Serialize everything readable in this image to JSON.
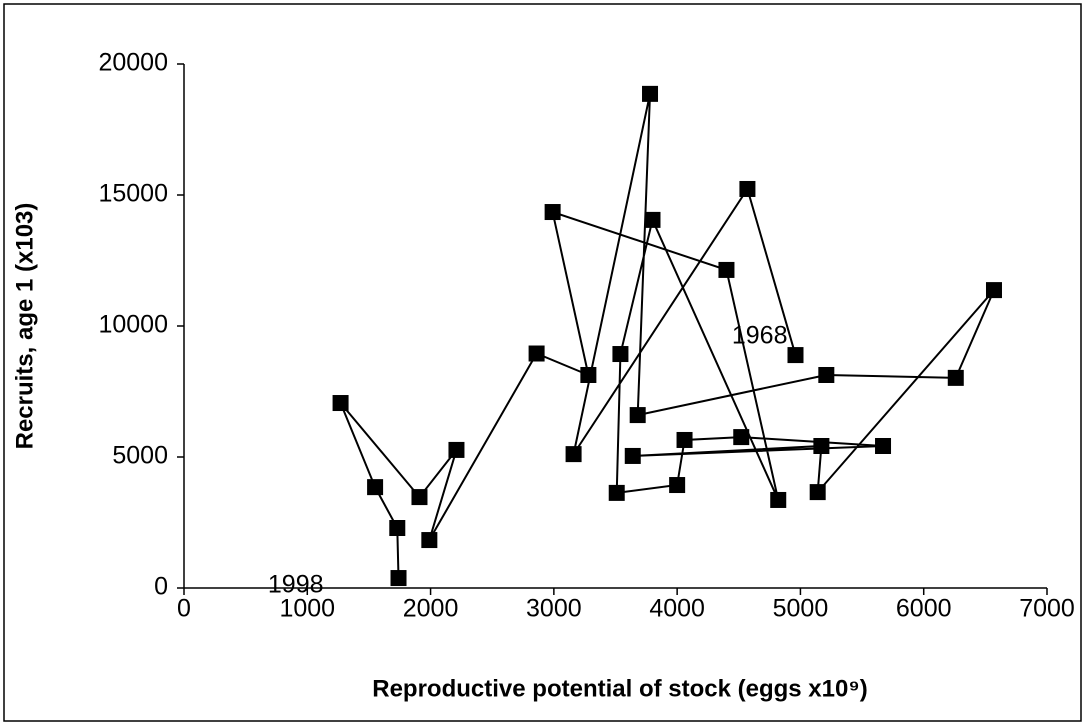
{
  "chart_data": {
    "type": "scatter_line",
    "x_label": "Reproductive potential of stock (eggs x10⁹)",
    "y_label": "Recruits, age 1 (x103)",
    "annotations": [
      "1968",
      "1998"
    ],
    "color": "#000000",
    "x": [
      4960,
      4570,
      3160,
      3780,
      3680,
      5210,
      6260,
      6570,
      5140,
      5170,
      3640,
      5670,
      4520,
      4060,
      4000,
      3510,
      3540,
      3800,
      4820,
      4400,
      2990,
      3280,
      2860,
      1990,
      2210,
      1910,
      1270,
      1550,
      1730,
      1740
    ],
    "y": [
      8890,
      15230,
      5110,
      18860,
      6600,
      8130,
      8020,
      11370,
      3660,
      5420,
      5040,
      5420,
      5760,
      5650,
      3930,
      3630,
      8930,
      14050,
      3360,
      12140,
      14350,
      8130,
      8950,
      1830,
      5270,
      3470,
      7060,
      3850,
      2290,
      380
    ],
    "xlim": [
      0,
      7000
    ],
    "xticks": [
      0,
      1000,
      2000,
      3000,
      4000,
      5000,
      6000,
      7000
    ],
    "ylim": [
      0,
      20000
    ],
    "yticks": [
      0,
      5000,
      10000,
      15000,
      20000
    ],
    "grid": false
  }
}
